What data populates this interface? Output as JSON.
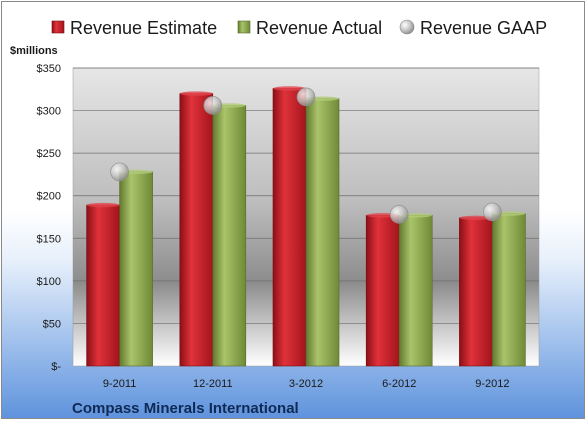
{
  "chart_data": {
    "type": "bar",
    "title": "",
    "ylabel": "$millions",
    "xlabel": "",
    "footer": "Compass Minerals International",
    "categories": [
      "9-2011",
      "12-2011",
      "3-2012",
      "6-2012",
      "9-2012"
    ],
    "ytick_labels": [
      "$-",
      "$50",
      "$100",
      "$150",
      "$200",
      "$250",
      "$300",
      "$350"
    ],
    "ylim": [
      0,
      350
    ],
    "grid": true,
    "legend_position": "top",
    "series": [
      {
        "name": "Revenue Estimate",
        "kind": "bar",
        "color": "#c8202a",
        "values": [
          189,
          320,
          326,
          177,
          174
        ]
      },
      {
        "name": "Revenue Actual",
        "kind": "bar",
        "color": "#8caa4f",
        "values": [
          228,
          306,
          314,
          177,
          179
        ]
      },
      {
        "name": "Revenue GAAP",
        "kind": "marker",
        "color": "#b8b8b8",
        "values": [
          228,
          306,
          316,
          178,
          181
        ]
      }
    ]
  }
}
